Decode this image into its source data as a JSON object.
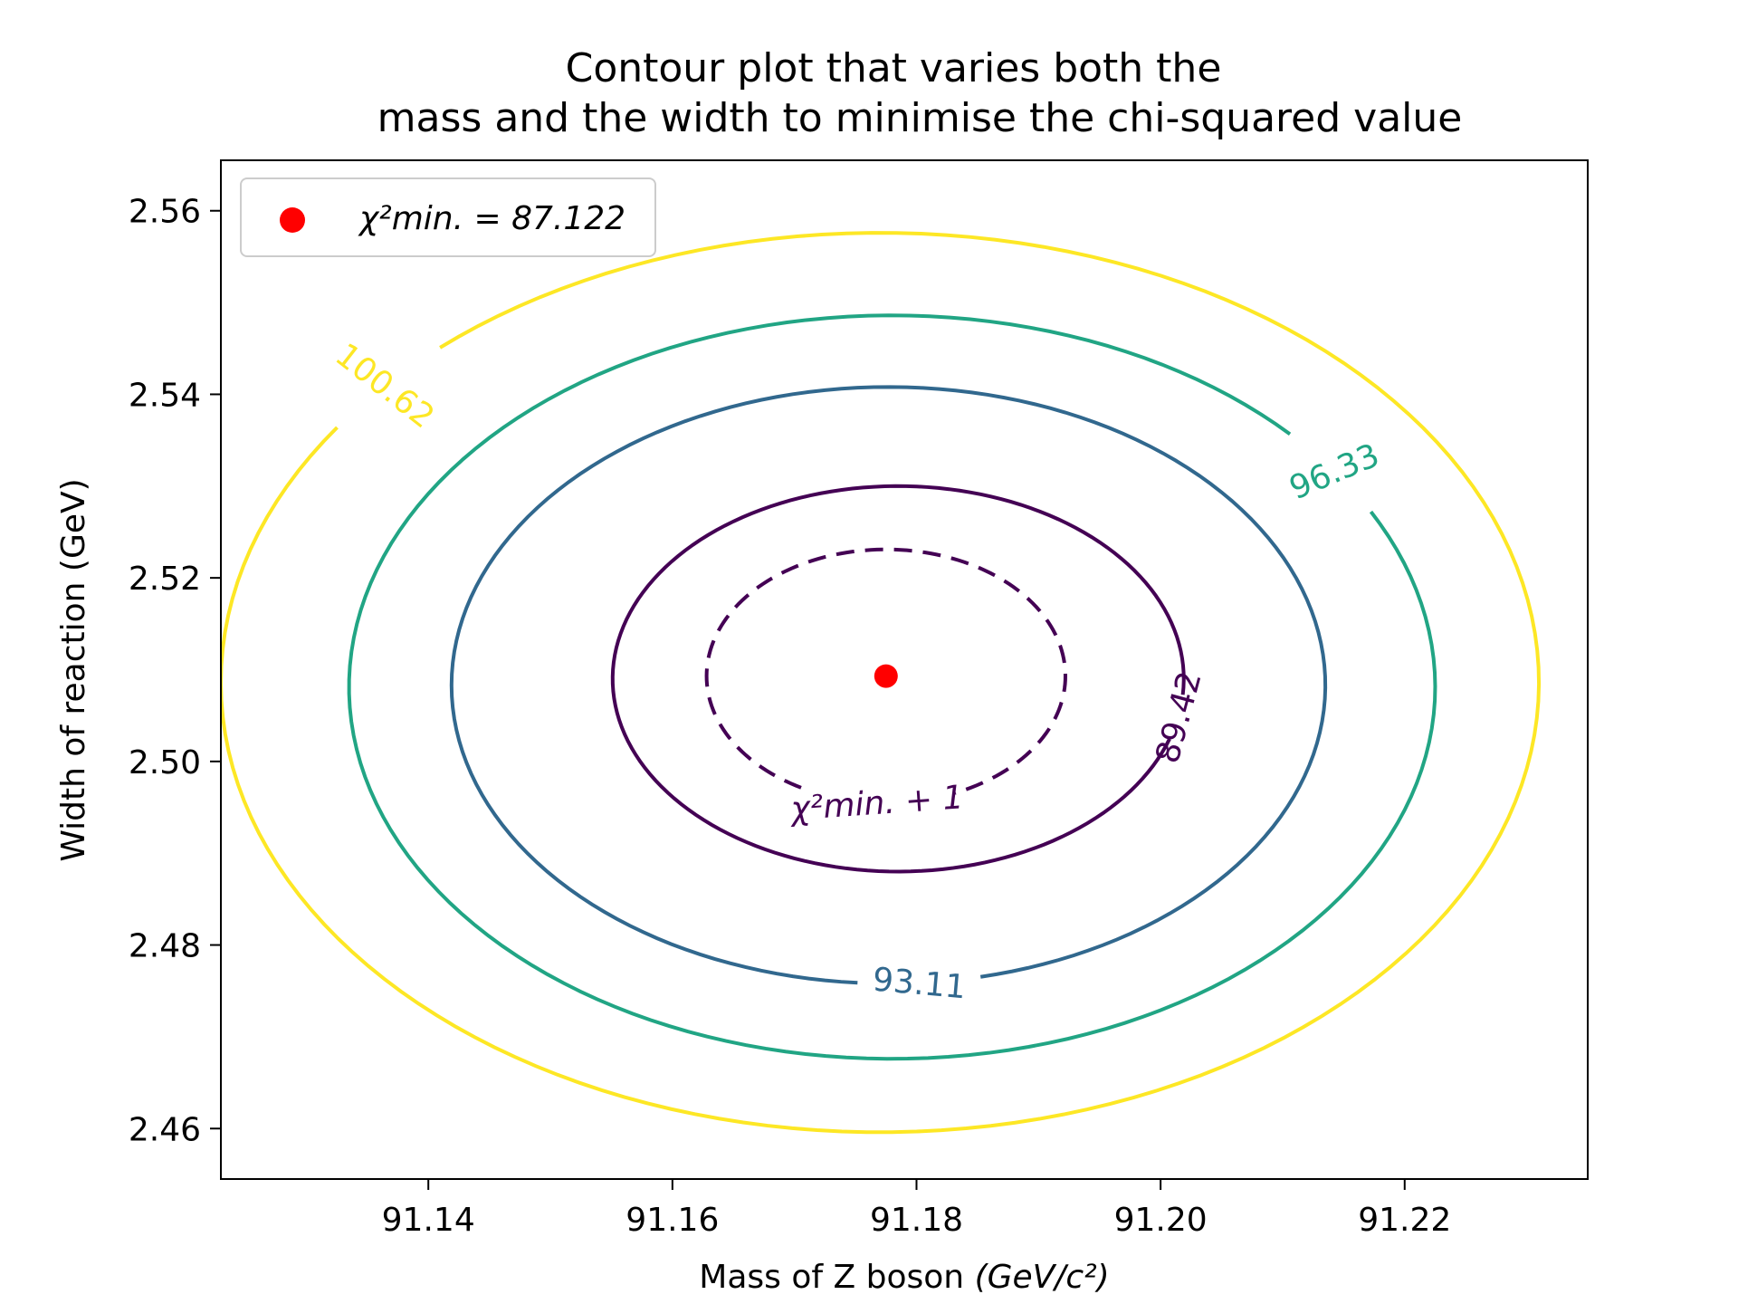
{
  "chart_data": {
    "type": "contour",
    "title": [
      "Contour plot that varies both the",
      "mass and the width to minimise the chi-squared value"
    ],
    "xlabel": "Mass of Z boson",
    "xlabel_unit": "(GeV/c²)",
    "ylabel": "Width of reaction (GeV)",
    "xlim": [
      91.123,
      91.235
    ],
    "ylim": [
      2.4545,
      2.5655
    ],
    "xticks": [
      91.14,
      91.16,
      91.18,
      91.2,
      91.22
    ],
    "xtick_labels": [
      "91.14",
      "91.16",
      "91.18",
      "91.20",
      "91.22"
    ],
    "yticks": [
      2.46,
      2.48,
      2.5,
      2.52,
      2.54,
      2.56
    ],
    "ytick_labels": [
      "2.46",
      "2.48",
      "2.50",
      "2.52",
      "2.54",
      "2.56"
    ],
    "grid": false,
    "legend_position": "upper-left",
    "minimum": {
      "x": 91.1775,
      "y": 2.5093,
      "chi2": 87.122,
      "color": "#ff0000",
      "legend_label": "χ²min. = 87.122"
    },
    "contours": [
      {
        "level_label": "χ²min. + 1",
        "cx": 91.1775,
        "cy": 2.5093,
        "rx": 0.0147,
        "ry": 0.0138,
        "color": "#440154",
        "dashed": true
      },
      {
        "level_label": "89.42",
        "cx": 91.1785,
        "cy": 2.509,
        "rx": 0.0234,
        "ry": 0.021,
        "color": "#440154",
        "dashed": false
      },
      {
        "level_label": "93.11",
        "cx": 91.1777,
        "cy": 2.5083,
        "rx": 0.0358,
        "ry": 0.0325,
        "color": "#31688e",
        "dashed": false
      },
      {
        "level_label": "96.33",
        "cx": 91.178,
        "cy": 2.5081,
        "rx": 0.0445,
        "ry": 0.0405,
        "color": "#21a584",
        "dashed": false
      },
      {
        "level_label": "100.62",
        "cx": 91.177,
        "cy": 2.5086,
        "rx": 0.054,
        "ry": 0.049,
        "color": "#fde725",
        "dashed": false
      }
    ]
  }
}
